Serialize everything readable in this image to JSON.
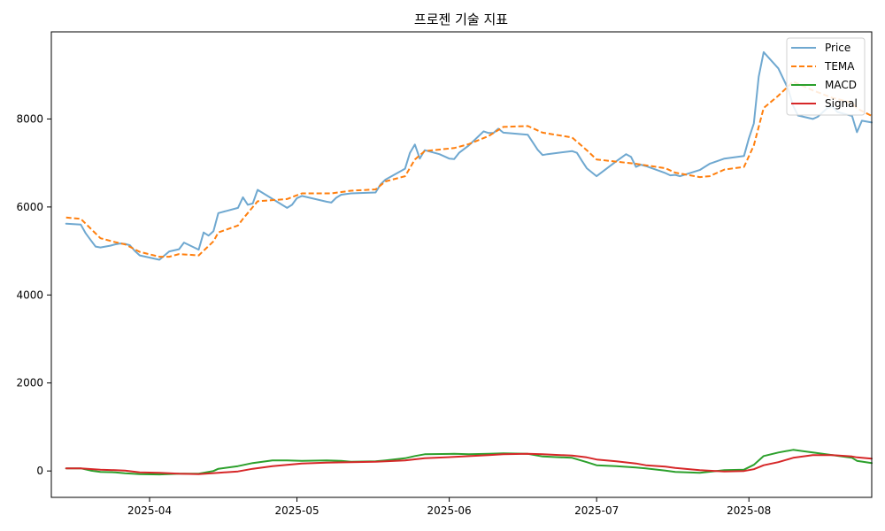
{
  "chart_data": {
    "type": "line",
    "title": "프로젠 기술 지표",
    "xlabel": "",
    "ylabel": "",
    "x_ticks": [
      "2025-04",
      "2025-05",
      "2025-06",
      "2025-07",
      "2025-08"
    ],
    "y_ticks": [
      "0",
      "2000",
      "4000",
      "6000",
      "8000"
    ],
    "xlim": [
      "2025-03-12",
      "2025-08-26"
    ],
    "ylim": [
      -600,
      9980
    ],
    "grid": false,
    "legend_position": "top-right",
    "series": [
      {
        "name": "Price",
        "color": "#6fa8d0",
        "style": "solid",
        "points": [
          [
            "2025-03-15",
            5620
          ],
          [
            "2025-03-18",
            5600
          ],
          [
            "2025-03-19",
            5400
          ],
          [
            "2025-03-20",
            5250
          ],
          [
            "2025-03-21",
            5100
          ],
          [
            "2025-03-22",
            5080
          ],
          [
            "2025-03-24",
            5120
          ],
          [
            "2025-03-25",
            5150
          ],
          [
            "2025-03-26",
            5170
          ],
          [
            "2025-03-27",
            5160
          ],
          [
            "2025-03-28",
            5130
          ],
          [
            "2025-03-29",
            5000
          ],
          [
            "2025-03-30",
            4900
          ],
          [
            "2025-04-03",
            4800
          ],
          [
            "2025-04-05",
            4990
          ],
          [
            "2025-04-07",
            5040
          ],
          [
            "2025-04-08",
            5190
          ],
          [
            "2025-04-11",
            5030
          ],
          [
            "2025-04-12",
            5420
          ],
          [
            "2025-04-13",
            5350
          ],
          [
            "2025-04-14",
            5450
          ],
          [
            "2025-04-15",
            5860
          ],
          [
            "2025-04-19",
            5980
          ],
          [
            "2025-04-20",
            6220
          ],
          [
            "2025-04-21",
            6050
          ],
          [
            "2025-04-22",
            6080
          ],
          [
            "2025-04-23",
            6390
          ],
          [
            "2025-04-29",
            5980
          ],
          [
            "2025-04-30",
            6050
          ],
          [
            "2025-05-01",
            6200
          ],
          [
            "2025-05-02",
            6250
          ],
          [
            "2025-05-07",
            6120
          ],
          [
            "2025-05-08",
            6100
          ],
          [
            "2025-05-09",
            6210
          ],
          [
            "2025-05-10",
            6280
          ],
          [
            "2025-05-12",
            6310
          ],
          [
            "2025-05-17",
            6330
          ],
          [
            "2025-05-18",
            6510
          ],
          [
            "2025-05-19",
            6620
          ],
          [
            "2025-05-23",
            6870
          ],
          [
            "2025-05-24",
            7230
          ],
          [
            "2025-05-25",
            7420
          ],
          [
            "2025-05-26",
            7100
          ],
          [
            "2025-05-27",
            7290
          ],
          [
            "2025-05-30",
            7200
          ],
          [
            "2025-05-31",
            7150
          ],
          [
            "2025-06-01",
            7100
          ],
          [
            "2025-06-02",
            7090
          ],
          [
            "2025-06-03",
            7230
          ],
          [
            "2025-06-05",
            7400
          ],
          [
            "2025-06-08",
            7720
          ],
          [
            "2025-06-09",
            7680
          ],
          [
            "2025-06-10",
            7680
          ],
          [
            "2025-06-11",
            7780
          ],
          [
            "2025-06-12",
            7690
          ],
          [
            "2025-06-17",
            7640
          ],
          [
            "2025-06-19",
            7300
          ],
          [
            "2025-06-20",
            7180
          ],
          [
            "2025-06-21",
            7200
          ],
          [
            "2025-06-26",
            7270
          ],
          [
            "2025-06-27",
            7230
          ],
          [
            "2025-06-28",
            7050
          ],
          [
            "2025-06-29",
            6880
          ],
          [
            "2025-07-01",
            6700
          ],
          [
            "2025-07-05",
            7040
          ],
          [
            "2025-07-07",
            7200
          ],
          [
            "2025-07-08",
            7140
          ],
          [
            "2025-07-09",
            6910
          ],
          [
            "2025-07-10",
            6960
          ],
          [
            "2025-07-11",
            6930
          ],
          [
            "2025-07-15",
            6770
          ],
          [
            "2025-07-16",
            6720
          ],
          [
            "2025-07-17",
            6730
          ],
          [
            "2025-07-18",
            6700
          ],
          [
            "2025-07-22",
            6840
          ],
          [
            "2025-07-24",
            6980
          ],
          [
            "2025-07-26",
            7060
          ],
          [
            "2025-07-27",
            7100
          ],
          [
            "2025-07-31",
            7160
          ],
          [
            "2025-08-01",
            7560
          ],
          [
            "2025-08-02",
            7900
          ],
          [
            "2025-08-03",
            8960
          ],
          [
            "2025-08-04",
            9520
          ],
          [
            "2025-08-07",
            9150
          ],
          [
            "2025-08-09",
            8680
          ],
          [
            "2025-08-10",
            8300
          ],
          [
            "2025-08-11",
            8080
          ],
          [
            "2025-08-14",
            8000
          ],
          [
            "2025-08-15",
            8050
          ],
          [
            "2025-08-17",
            8250
          ],
          [
            "2025-08-18",
            8290
          ],
          [
            "2025-08-19",
            8160
          ],
          [
            "2025-08-22",
            8070
          ],
          [
            "2025-08-23",
            7700
          ],
          [
            "2025-08-24",
            7960
          ],
          [
            "2025-08-26",
            7920
          ]
        ]
      },
      {
        "name": "TEMA",
        "color": "#ff7f0e",
        "style": "dashed",
        "points": [
          [
            "2025-03-15",
            5760
          ],
          [
            "2025-03-18",
            5730
          ],
          [
            "2025-03-22",
            5290
          ],
          [
            "2025-03-25",
            5200
          ],
          [
            "2025-03-27",
            5150
          ],
          [
            "2025-03-30",
            4980
          ],
          [
            "2025-04-03",
            4870
          ],
          [
            "2025-04-05",
            4870
          ],
          [
            "2025-04-07",
            4930
          ],
          [
            "2025-04-11",
            4900
          ],
          [
            "2025-04-14",
            5220
          ],
          [
            "2025-04-15",
            5420
          ],
          [
            "2025-04-19",
            5580
          ],
          [
            "2025-04-20",
            5730
          ],
          [
            "2025-04-23",
            6130
          ],
          [
            "2025-04-29",
            6180
          ],
          [
            "2025-05-02",
            6310
          ],
          [
            "2025-05-08",
            6310
          ],
          [
            "2025-05-12",
            6370
          ],
          [
            "2025-05-17",
            6400
          ],
          [
            "2025-05-19",
            6580
          ],
          [
            "2025-05-23",
            6700
          ],
          [
            "2025-05-25",
            7080
          ],
          [
            "2025-05-27",
            7270
          ],
          [
            "2025-06-02",
            7340
          ],
          [
            "2025-06-05",
            7430
          ],
          [
            "2025-06-09",
            7610
          ],
          [
            "2025-06-12",
            7820
          ],
          [
            "2025-06-17",
            7840
          ],
          [
            "2025-06-20",
            7690
          ],
          [
            "2025-06-26",
            7580
          ],
          [
            "2025-06-29",
            7290
          ],
          [
            "2025-07-01",
            7080
          ],
          [
            "2025-07-09",
            6980
          ],
          [
            "2025-07-15",
            6880
          ],
          [
            "2025-07-17",
            6780
          ],
          [
            "2025-07-22",
            6680
          ],
          [
            "2025-07-24",
            6700
          ],
          [
            "2025-07-27",
            6850
          ],
          [
            "2025-07-31",
            6910
          ],
          [
            "2025-08-02",
            7400
          ],
          [
            "2025-08-04",
            8250
          ],
          [
            "2025-08-07",
            8530
          ],
          [
            "2025-08-10",
            8850
          ],
          [
            "2025-08-14",
            8650
          ],
          [
            "2025-08-18",
            8480
          ],
          [
            "2025-08-22",
            8370
          ],
          [
            "2025-08-23",
            8240
          ],
          [
            "2025-08-26",
            8070
          ]
        ]
      },
      {
        "name": "MACD",
        "color": "#2ca02c",
        "style": "solid",
        "points": [
          [
            "2025-03-15",
            60
          ],
          [
            "2025-03-18",
            60
          ],
          [
            "2025-03-20",
            10
          ],
          [
            "2025-03-22",
            -20
          ],
          [
            "2025-03-25",
            -30
          ],
          [
            "2025-03-27",
            -50
          ],
          [
            "2025-03-30",
            -70
          ],
          [
            "2025-04-03",
            -80
          ],
          [
            "2025-04-07",
            -60
          ],
          [
            "2025-04-11",
            -60
          ],
          [
            "2025-04-14",
            0
          ],
          [
            "2025-04-15",
            50
          ],
          [
            "2025-04-19",
            110
          ],
          [
            "2025-04-22",
            180
          ],
          [
            "2025-04-26",
            240
          ],
          [
            "2025-04-29",
            240
          ],
          [
            "2025-05-02",
            230
          ],
          [
            "2025-05-07",
            240
          ],
          [
            "2025-05-10",
            230
          ],
          [
            "2025-05-12",
            210
          ],
          [
            "2025-05-17",
            220
          ],
          [
            "2025-05-19",
            240
          ],
          [
            "2025-05-23",
            290
          ],
          [
            "2025-05-25",
            340
          ],
          [
            "2025-05-27",
            380
          ],
          [
            "2025-06-02",
            390
          ],
          [
            "2025-06-05",
            380
          ],
          [
            "2025-06-09",
            390
          ],
          [
            "2025-06-12",
            400
          ],
          [
            "2025-06-17",
            390
          ],
          [
            "2025-06-20",
            330
          ],
          [
            "2025-06-26",
            300
          ],
          [
            "2025-06-29",
            200
          ],
          [
            "2025-07-01",
            130
          ],
          [
            "2025-07-05",
            110
          ],
          [
            "2025-07-09",
            80
          ],
          [
            "2025-07-11",
            60
          ],
          [
            "2025-07-15",
            10
          ],
          [
            "2025-07-17",
            -20
          ],
          [
            "2025-07-22",
            -40
          ],
          [
            "2025-07-27",
            20
          ],
          [
            "2025-07-31",
            30
          ],
          [
            "2025-08-02",
            140
          ],
          [
            "2025-08-04",
            340
          ],
          [
            "2025-08-07",
            420
          ],
          [
            "2025-08-10",
            480
          ],
          [
            "2025-08-14",
            420
          ],
          [
            "2025-08-18",
            360
          ],
          [
            "2025-08-22",
            300
          ],
          [
            "2025-08-23",
            230
          ],
          [
            "2025-08-26",
            180
          ]
        ]
      },
      {
        "name": "Signal",
        "color": "#d62728",
        "style": "solid",
        "points": [
          [
            "2025-03-15",
            60
          ],
          [
            "2025-03-18",
            60
          ],
          [
            "2025-03-22",
            30
          ],
          [
            "2025-03-27",
            10
          ],
          [
            "2025-03-30",
            -30
          ],
          [
            "2025-04-03",
            -40
          ],
          [
            "2025-04-07",
            -60
          ],
          [
            "2025-04-11",
            -70
          ],
          [
            "2025-04-15",
            -40
          ],
          [
            "2025-04-19",
            -10
          ],
          [
            "2025-04-22",
            50
          ],
          [
            "2025-04-26",
            110
          ],
          [
            "2025-04-29",
            140
          ],
          [
            "2025-05-02",
            170
          ],
          [
            "2025-05-07",
            190
          ],
          [
            "2025-05-12",
            200
          ],
          [
            "2025-05-17",
            210
          ],
          [
            "2025-05-23",
            240
          ],
          [
            "2025-05-27",
            290
          ],
          [
            "2025-06-02",
            320
          ],
          [
            "2025-06-09",
            360
          ],
          [
            "2025-06-12",
            380
          ],
          [
            "2025-06-17",
            390
          ],
          [
            "2025-06-20",
            380
          ],
          [
            "2025-06-26",
            350
          ],
          [
            "2025-06-29",
            310
          ],
          [
            "2025-07-01",
            260
          ],
          [
            "2025-07-05",
            220
          ],
          [
            "2025-07-09",
            170
          ],
          [
            "2025-07-11",
            130
          ],
          [
            "2025-07-15",
            100
          ],
          [
            "2025-07-17",
            70
          ],
          [
            "2025-07-22",
            20
          ],
          [
            "2025-07-27",
            -10
          ],
          [
            "2025-07-31",
            0
          ],
          [
            "2025-08-02",
            40
          ],
          [
            "2025-08-04",
            130
          ],
          [
            "2025-08-07",
            200
          ],
          [
            "2025-08-10",
            300
          ],
          [
            "2025-08-14",
            360
          ],
          [
            "2025-08-18",
            360
          ],
          [
            "2025-08-22",
            330
          ],
          [
            "2025-08-23",
            310
          ],
          [
            "2025-08-26",
            280
          ]
        ]
      }
    ]
  }
}
